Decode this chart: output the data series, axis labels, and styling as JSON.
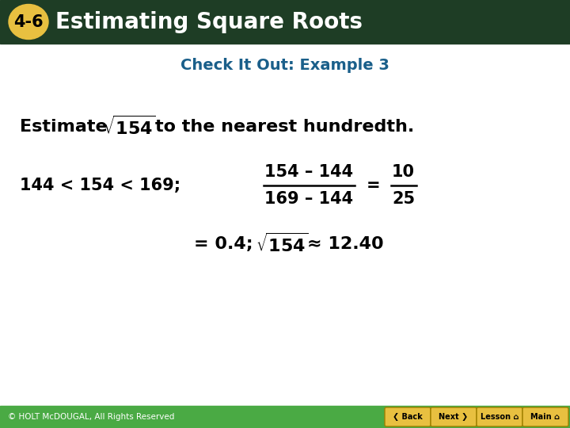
{
  "title_text": "Estimating Square Roots",
  "title_number": "4-6",
  "subtitle": "Check It Out: Example 3",
  "header_bg_color": "#1e3d25",
  "header_text_color": "#ffffff",
  "badge_bg_color": "#e8c040",
  "badge_text_color": "#000000",
  "subtitle_color": "#1a5f8a",
  "body_bg_color": "#ffffff",
  "footer_bg_color": "#4aaa44",
  "footer_text_color": "#ffffff",
  "footer_text": "© HOLT McDOUGAL, All Rights Reserved",
  "frac_num": "154 – 144",
  "frac_den": "169 – 144",
  "frac_eq_num": "10",
  "frac_eq_den": "25",
  "button_color": "#e8c040",
  "button_labels": [
    "Back",
    "Next",
    "Lesson",
    "Main"
  ]
}
